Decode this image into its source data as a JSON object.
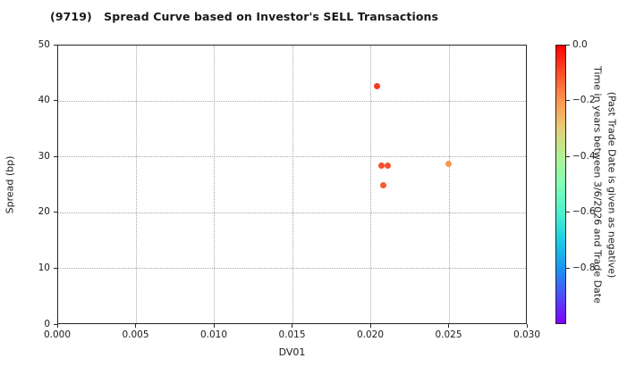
{
  "chart_data": {
    "type": "scatter",
    "title": "(9719)   Spread Curve based on Investor's SELL Transactions",
    "xlabel": "DV01",
    "ylabel": "Spread (bp)",
    "xlim": [
      0.0,
      0.03
    ],
    "ylim": [
      0,
      50
    ],
    "xticks": {
      "values": [
        0.0,
        0.005,
        0.01,
        0.015,
        0.02,
        0.025,
        0.03
      ],
      "labels": [
        "0.000",
        "0.005",
        "0.010",
        "0.015",
        "0.020",
        "0.025",
        "0.030"
      ]
    },
    "yticks": {
      "values": [
        0,
        10,
        20,
        30,
        40,
        50
      ],
      "labels": [
        "0",
        "10",
        "20",
        "30",
        "40",
        "50"
      ]
    },
    "grid": {
      "style": "dotted",
      "color": "#a6a6a6"
    },
    "points": [
      {
        "x": 0.0204,
        "y": 42.5,
        "time_years": -0.07,
        "color": "#f23a20"
      },
      {
        "x": 0.0207,
        "y": 28.4,
        "time_years": -0.1,
        "color": "#f5502b"
      },
      {
        "x": 0.0211,
        "y": 28.3,
        "time_years": -0.1,
        "color": "#f5532c"
      },
      {
        "x": 0.0208,
        "y": 24.9,
        "time_years": -0.11,
        "color": "#f65e31"
      },
      {
        "x": 0.025,
        "y": 28.6,
        "time_years": -0.2,
        "color": "#f9954f"
      }
    ],
    "colorbar": {
      "label_line1": "Time in years between 3/6/2026 and Trade Date",
      "label_line2": "(Past Trade Date is given as negative)",
      "tick_labels": [
        "0.0",
        "−0.2",
        "−0.4",
        "−0.6",
        "−0.8"
      ],
      "tick_values": [
        0,
        -0.2,
        -0.4,
        -0.6,
        -0.8
      ],
      "range": [
        0,
        -1
      ],
      "colormap": "rainbow",
      "gradient_stops": [
        "#ff0000",
        "#ff4f28",
        "#ff964f",
        "#e6ce74",
        "#b2f296",
        "#80ffb4",
        "#4cf2ce",
        "#1acee3",
        "#1a96f2",
        "#4c4ffc",
        "#8000ff"
      ]
    }
  }
}
